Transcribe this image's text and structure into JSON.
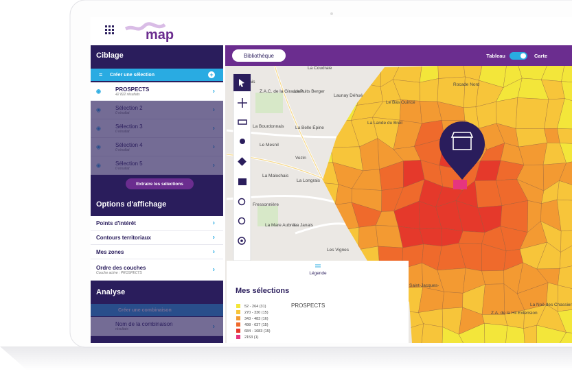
{
  "header": {
    "logo": "map"
  },
  "sidebar": {
    "ciblage": {
      "title": "Ciblage",
      "create": "Créer une sélection",
      "selections": [
        {
          "name": "PROSPECTS",
          "count": "42 822 résultats"
        },
        {
          "name": "Sélection 2",
          "count": "0 résultat"
        },
        {
          "name": "Sélection 3",
          "count": "0 résultat"
        },
        {
          "name": "Sélection 4",
          "count": "0 résultat"
        },
        {
          "name": "Sélection 5",
          "count": "0 résultat"
        }
      ],
      "extract": "Extraire les sélections"
    },
    "options": {
      "title": "Options d'affichage",
      "items": [
        {
          "label": "Points d'intérêt"
        },
        {
          "label": "Contours territoriaux"
        },
        {
          "label": "Mes zones"
        },
        {
          "label": "Ordre des couches",
          "sub": "Couche active : PROSPECTS"
        }
      ]
    },
    "analyse": {
      "title": "Analyse",
      "create": "Créer une combinaison",
      "combination": {
        "name": "Nom de la combinaison",
        "count": "résultats"
      }
    }
  },
  "map": {
    "library": "Bibliothèque",
    "toggle": {
      "left": "Tableau",
      "right": "Carte"
    },
    "places": [
      "La Coudraie",
      "Teillais",
      "Z.A.C. de la Giraudais",
      "Le Puits Berger",
      "Launay Déhué",
      "La Bourdonnais",
      "La Belle Épine",
      "Le Mesnil",
      "Vezin",
      "La Malochais",
      "La Longrais",
      "Fressonnière",
      "La Mare Aubrée",
      "La Janais",
      "Les Vignes",
      "Le Bas Ouincé",
      "La Lande du Breil",
      "Rocade Nord",
      "La Noë des Chassiers",
      "Z.A. de la Hil Extension",
      "Saint-Jacques-"
    ],
    "legend": {
      "tab": "Légende",
      "title": "Mes sélections",
      "layer": "PROSPECTS",
      "items": [
        {
          "label": "52 - 264 (31)",
          "color": "#f3e63a"
        },
        {
          "label": "270 - 330 (15)",
          "color": "#f7c53a"
        },
        {
          "label": "343 - 483 (16)",
          "color": "#f39a32"
        },
        {
          "label": "498 - 637 (15)",
          "color": "#ef6a2c"
        },
        {
          "label": "684 - 1683 (15)",
          "color": "#e5392b"
        },
        {
          "label": "2153 (1)",
          "color": "#e6357f"
        }
      ]
    }
  }
}
